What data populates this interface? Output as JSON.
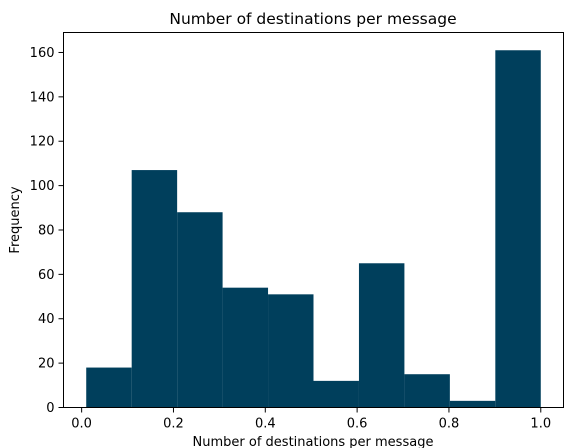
{
  "chart_data": {
    "type": "bar",
    "title": "Number of destinations per message",
    "xlabel": "Number of destinations per message",
    "ylabel": "Frequency",
    "bins": [
      {
        "x0": 0.01,
        "x1": 0.109,
        "value": 18
      },
      {
        "x0": 0.109,
        "x1": 0.208,
        "value": 107
      },
      {
        "x0": 0.208,
        "x1": 0.307,
        "value": 88
      },
      {
        "x0": 0.307,
        "x1": 0.406,
        "value": 54
      },
      {
        "x0": 0.406,
        "x1": 0.505,
        "value": 51
      },
      {
        "x0": 0.505,
        "x1": 0.604,
        "value": 12
      },
      {
        "x0": 0.604,
        "x1": 0.703,
        "value": 65
      },
      {
        "x0": 0.703,
        "x1": 0.802,
        "value": 15
      },
      {
        "x0": 0.802,
        "x1": 0.901,
        "value": 3
      },
      {
        "x0": 0.901,
        "x1": 1.0,
        "value": 161
      }
    ],
    "xlim": [
      -0.0395,
      1.0495
    ],
    "ylim": [
      0,
      169
    ],
    "xticks": [
      "0.0",
      "0.2",
      "0.4",
      "0.6",
      "0.8",
      "1.0"
    ],
    "yticks": [
      "0",
      "20",
      "40",
      "60",
      "80",
      "100",
      "120",
      "140",
      "160"
    ],
    "bar_color": "#003f5c",
    "grid": false,
    "legend": false
  }
}
